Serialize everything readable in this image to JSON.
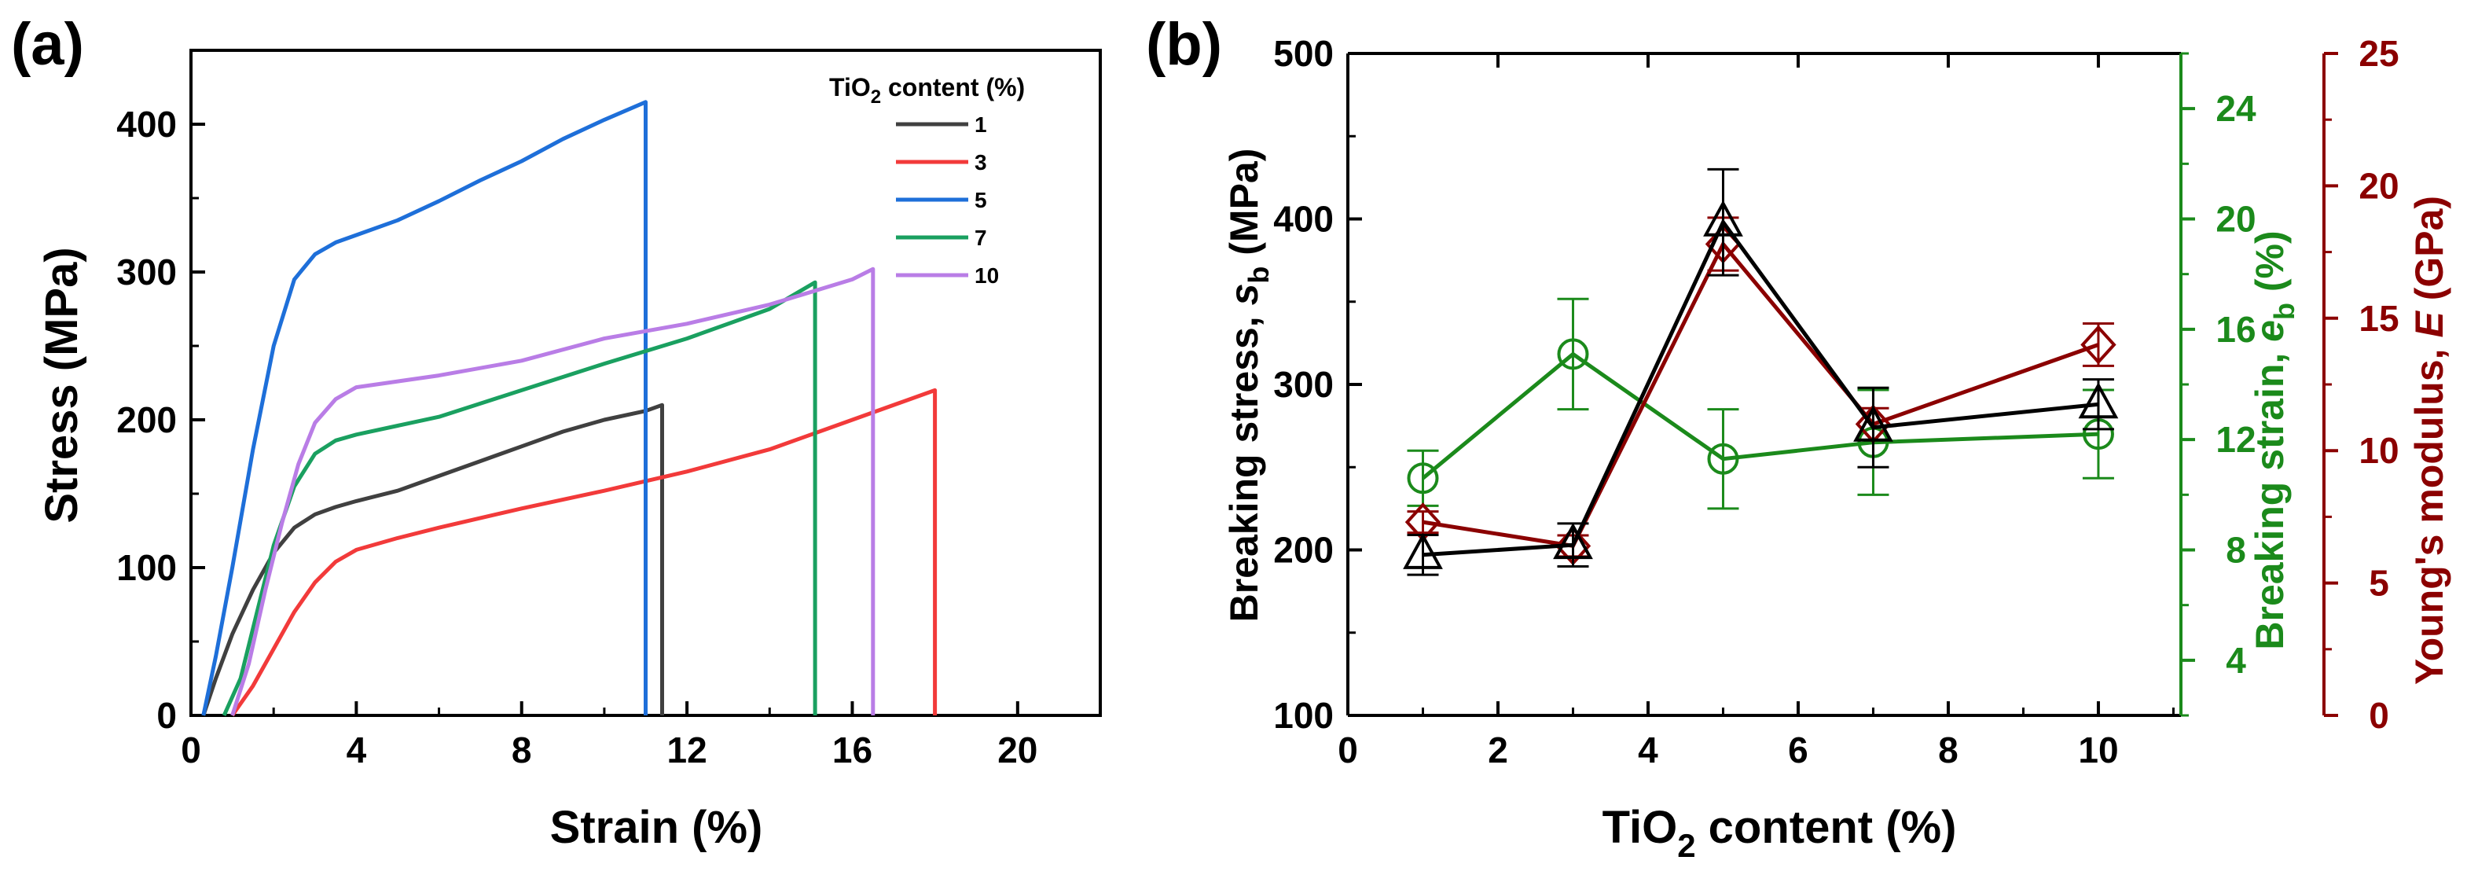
{
  "panel_a": {
    "panel_label": "(a)",
    "xlabel": "Strain (%)",
    "ylabel": "Stress (MPa)",
    "legend_title_prefix": "TiO",
    "legend_title_sub": "2",
    "legend_title_suffix": " content (%)"
  },
  "panel_b": {
    "panel_label": "(b)",
    "xlabel_prefix": "TiO",
    "xlabel_sub": "2",
    "xlabel_suffix": " content  (%)",
    "ylabel_left_text": "Breaking stress, ",
    "ylabel_left_sym": "s",
    "ylabel_left_sub": "b",
    "ylabel_left_unit": " (MPa)",
    "ylabel_mid_text": "Breaking strain, ",
    "ylabel_mid_sym": "e",
    "ylabel_mid_sub": "b",
    "ylabel_mid_unit": " (%)",
    "ylabel_right_text": "Young's modulus, ",
    "ylabel_right_sym": "E",
    "ylabel_right_unit": " (GPa)"
  },
  "chart_data": [
    {
      "type": "line",
      "panel": "a",
      "xlim": [
        0,
        22
      ],
      "ylim": [
        0,
        450
      ],
      "xticks": [
        0,
        4,
        8,
        12,
        16,
        20
      ],
      "yticks": [
        0,
        100,
        200,
        300,
        400
      ],
      "grid": false,
      "legend_placement": "top-right",
      "series": [
        {
          "name": "1",
          "color": "#404040",
          "x": [
            0.3,
            0.6,
            1.0,
            1.5,
            2.0,
            2.5,
            3.0,
            3.5,
            4.0,
            5.0,
            6.0,
            7.0,
            8.0,
            9.0,
            10.0,
            11.0,
            11.4,
            11.4
          ],
          "y": [
            0,
            25,
            55,
            85,
            110,
            127,
            136,
            141,
            145,
            152,
            162,
            172,
            182,
            192,
            200,
            206,
            210,
            0
          ]
        },
        {
          "name": "3",
          "color": "#f23a3a",
          "x": [
            1.0,
            1.5,
            2.0,
            2.5,
            3.0,
            3.5,
            4.0,
            5.0,
            6.0,
            8.0,
            10.0,
            12.0,
            14.0,
            16.0,
            18.0,
            18.0
          ],
          "y": [
            0,
            20,
            45,
            70,
            90,
            104,
            112,
            120,
            127,
            140,
            152,
            165,
            180,
            200,
            220,
            0
          ]
        },
        {
          "name": "5",
          "color": "#1e6fd9",
          "x": [
            0.3,
            0.6,
            1.0,
            1.5,
            2.0,
            2.5,
            3.0,
            3.5,
            4.0,
            5.0,
            6.0,
            7.0,
            8.0,
            9.0,
            10.0,
            11.0,
            11.0
          ],
          "y": [
            0,
            40,
            100,
            180,
            250,
            295,
            312,
            320,
            325,
            335,
            348,
            362,
            375,
            390,
            403,
            415,
            0
          ]
        },
        {
          "name": "7",
          "color": "#1aa060",
          "x": [
            0.8,
            1.2,
            1.6,
            2.0,
            2.5,
            3.0,
            3.5,
            4.0,
            5.0,
            6.0,
            8.0,
            10.0,
            12.0,
            14.0,
            15.1,
            15.1
          ],
          "y": [
            0,
            25,
            70,
            115,
            155,
            177,
            186,
            190,
            196,
            202,
            220,
            238,
            255,
            275,
            293,
            0
          ]
        },
        {
          "name": "10",
          "color": "#b97de6",
          "x": [
            1.0,
            1.4,
            1.8,
            2.2,
            2.6,
            3.0,
            3.5,
            4.0,
            5.0,
            6.0,
            8.0,
            10.0,
            12.0,
            14.0,
            16.0,
            16.5,
            16.5
          ],
          "y": [
            0,
            35,
            85,
            130,
            170,
            198,
            214,
            222,
            226,
            230,
            240,
            255,
            265,
            278,
            295,
            302,
            0
          ]
        }
      ]
    },
    {
      "type": "scatter",
      "panel": "b",
      "x": [
        1,
        3,
        5,
        7,
        10
      ],
      "xlim": [
        0,
        11.1
      ],
      "xticks": [
        0,
        2,
        4,
        6,
        8,
        10
      ],
      "grid": false,
      "series": [
        {
          "axis": "left",
          "color": "#000000",
          "marker": "triangle",
          "ylim": [
            100,
            500
          ],
          "yticks": [
            100,
            200,
            300,
            400,
            500
          ],
          "values": [
            197,
            203,
            398,
            274,
            288
          ],
          "errors": [
            12,
            13,
            32,
            24,
            15
          ]
        },
        {
          "axis": "middle",
          "color": "#1b8a1b",
          "marker": "circle",
          "ylim": [
            2,
            26
          ],
          "yticks": [
            4,
            8,
            12,
            16,
            20,
            24
          ],
          "values": [
            10.6,
            15.1,
            11.3,
            11.9,
            12.2
          ],
          "errors": [
            1.0,
            2.0,
            1.8,
            1.9,
            1.6
          ]
        },
        {
          "axis": "right",
          "color": "#8b0000",
          "marker": "diamond",
          "ylim": [
            0,
            25
          ],
          "yticks": [
            0,
            5,
            10,
            15,
            20,
            25
          ],
          "values": [
            7.3,
            6.4,
            17.8,
            11.0,
            14.0
          ],
          "errors": [
            0.4,
            0.4,
            1.0,
            0.6,
            0.8
          ]
        }
      ]
    }
  ]
}
